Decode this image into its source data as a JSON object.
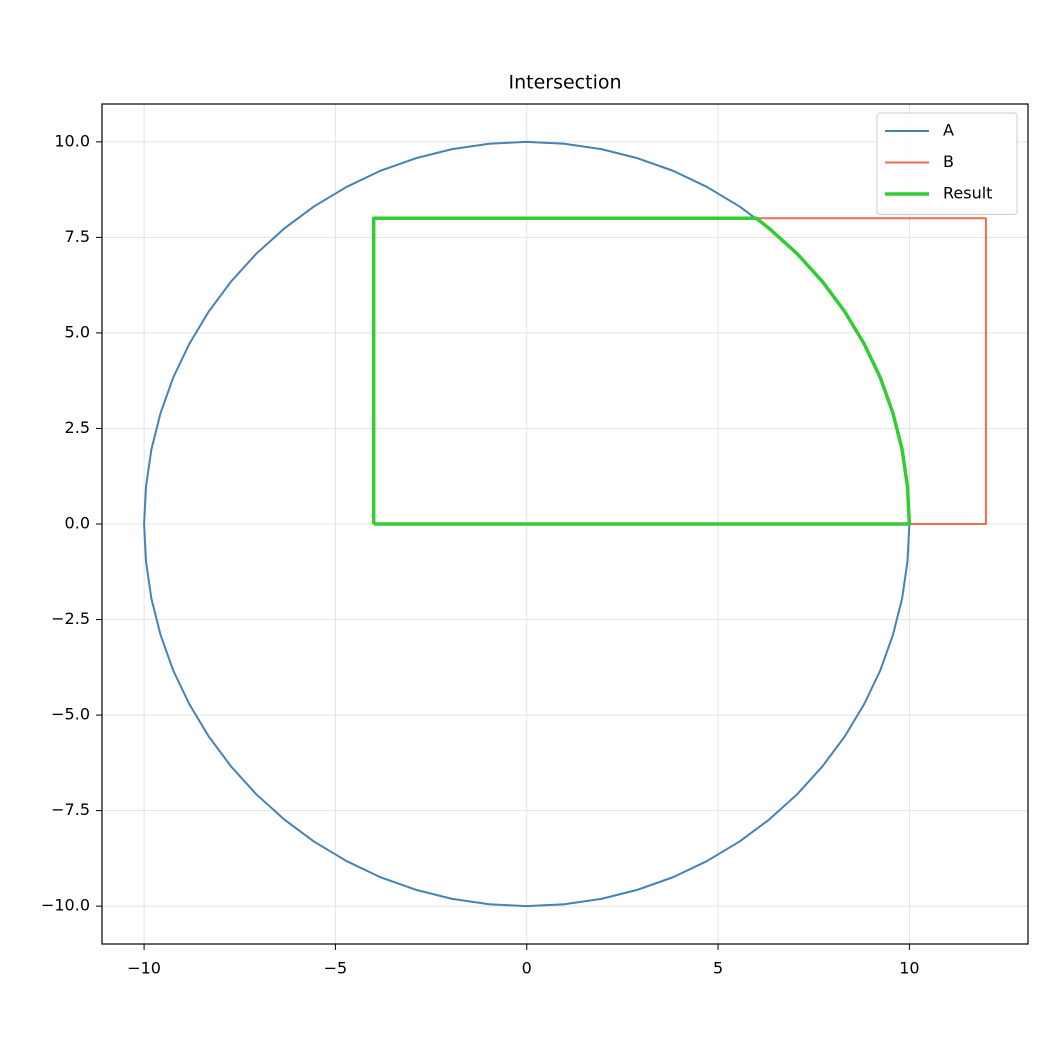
{
  "chart_data": {
    "type": "line",
    "title": "Intersection",
    "xlim": [
      -11.1,
      13.1
    ],
    "ylim": [
      -10.99,
      10.99
    ],
    "xticks": [
      {
        "value": -10,
        "label": "−10"
      },
      {
        "value": -5,
        "label": "−5"
      },
      0,
      5,
      10
    ],
    "yticks": [
      {
        "value": -10,
        "label": "−10.0"
      },
      {
        "value": -7.5,
        "label": "−7.5"
      },
      {
        "value": -5,
        "label": "−5.0"
      },
      {
        "value": -2.5,
        "label": "−2.5"
      },
      {
        "value": 0,
        "label": "0.0"
      },
      {
        "value": 2.5,
        "label": "2.5"
      },
      {
        "value": 5,
        "label": "5.0"
      },
      {
        "value": 7.5,
        "label": "7.5"
      },
      {
        "value": 10,
        "label": "10.0"
      }
    ],
    "grid": true,
    "legend": "upper right",
    "series": [
      {
        "name": "A",
        "color": "#4682b4",
        "width": 2,
        "x": [
          10,
          9.95,
          9.81,
          9.57,
          9.24,
          8.82,
          8.31,
          7.73,
          7.07,
          6.34,
          5.56,
          4.71,
          3.83,
          2.9,
          1.95,
          0.98,
          0,
          -0.98,
          -1.95,
          -2.9,
          -3.83,
          -4.71,
          -5.56,
          -6.34,
          -7.07,
          -7.73,
          -8.31,
          -8.82,
          -9.24,
          -9.57,
          -9.81,
          -9.95,
          -10,
          -9.95,
          -9.81,
          -9.57,
          -9.24,
          -8.82,
          -8.31,
          -7.73,
          -7.07,
          -6.34,
          -5.56,
          -4.71,
          -3.83,
          -2.9,
          -1.95,
          -0.98,
          0,
          0.98,
          1.95,
          2.9,
          3.83,
          4.71,
          5.56,
          6.34,
          7.07,
          7.73,
          8.31,
          8.82,
          9.24,
          9.57,
          9.81,
          9.95,
          10
        ],
        "values": [
          0,
          0.98,
          1.95,
          2.9,
          3.83,
          4.71,
          5.56,
          6.34,
          7.07,
          7.73,
          8.31,
          8.82,
          9.24,
          9.57,
          9.81,
          9.95,
          10,
          9.95,
          9.81,
          9.57,
          9.24,
          8.82,
          8.31,
          7.73,
          7.07,
          6.34,
          5.56,
          4.71,
          3.83,
          2.9,
          1.95,
          0.98,
          0,
          -0.98,
          -1.95,
          -2.9,
          -3.83,
          -4.71,
          -5.56,
          -6.34,
          -7.07,
          -7.73,
          -8.31,
          -8.82,
          -9.24,
          -9.57,
          -9.81,
          -9.95,
          -10,
          -9.95,
          -9.81,
          -9.57,
          -9.24,
          -8.82,
          -8.31,
          -7.73,
          -7.07,
          -6.34,
          -5.56,
          -4.71,
          -3.83,
          -2.9,
          -1.95,
          -0.98,
          0
        ]
      },
      {
        "name": "B",
        "color": "#f26b4f",
        "width": 2,
        "x": [
          -4,
          12,
          12,
          -4,
          -4
        ],
        "values": [
          0,
          0,
          8,
          8,
          0
        ]
      },
      {
        "name": "Result",
        "color": "#32cd32",
        "width": 3.5,
        "x": [
          -4,
          10,
          9.95,
          9.81,
          9.57,
          9.24,
          8.82,
          8.31,
          7.73,
          7.07,
          6.34,
          6,
          -4,
          -4
        ],
        "values": [
          0,
          0,
          0.98,
          1.95,
          2.9,
          3.83,
          4.71,
          5.56,
          6.34,
          7.07,
          7.73,
          8,
          8,
          0
        ]
      }
    ]
  }
}
